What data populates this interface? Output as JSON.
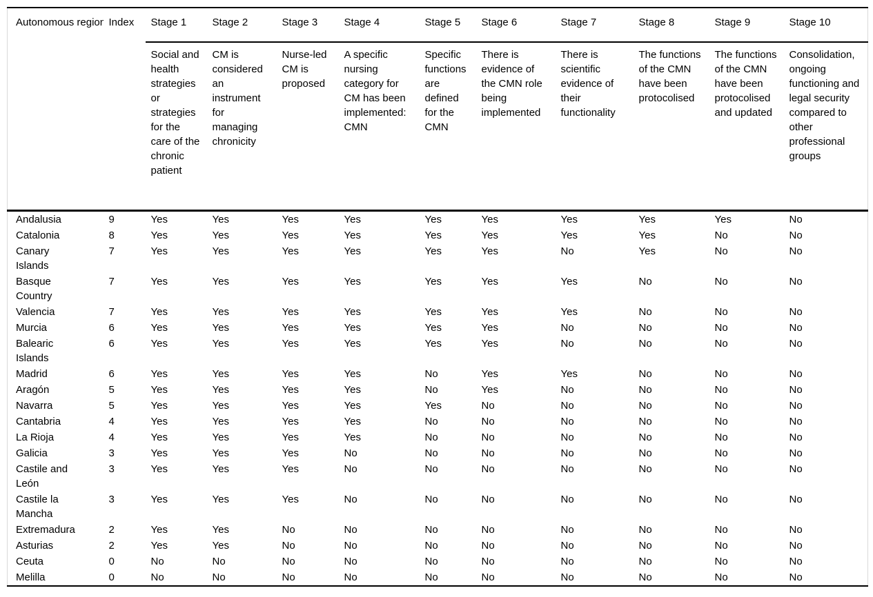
{
  "colors": {
    "background": "#ffffff",
    "text": "#000000",
    "rule": "#000000",
    "frame_side": "#d9d9d9"
  },
  "table": {
    "col1_header": "Autonomous region",
    "col2_header": "Index",
    "stages": [
      {
        "label": "Stage 1",
        "description": "Social and health strategies or strategies for the care of the chronic patient"
      },
      {
        "label": "Stage 2",
        "description": "CM is considered an instrument for managing chronicity"
      },
      {
        "label": "Stage 3",
        "description": "Nurse-led CM is proposed"
      },
      {
        "label": "Stage 4",
        "description": "A specific nursing category for CM has been implemented: CMN"
      },
      {
        "label": "Stage 5",
        "description": "Specific functions are defined for the CMN"
      },
      {
        "label": "Stage 6",
        "description": "There is evidence of the CMN role being implemented"
      },
      {
        "label": "Stage 7",
        "description": "There is scientific evidence of their functionality"
      },
      {
        "label": "Stage 8",
        "description": "The functions of the CMN have been protocolised"
      },
      {
        "label": "Stage 9",
        "description": "The functions of the CMN have been protocolised and updated"
      },
      {
        "label": "Stage 10",
        "description": "Consolidation, ongoing functioning and legal security compared to other professional groups"
      }
    ],
    "rows": [
      {
        "region": "Andalusia",
        "index": 9,
        "stages": [
          "Yes",
          "Yes",
          "Yes",
          "Yes",
          "Yes",
          "Yes",
          "Yes",
          "Yes",
          "Yes",
          "No"
        ]
      },
      {
        "region": "Catalonia",
        "index": 8,
        "stages": [
          "Yes",
          "Yes",
          "Yes",
          "Yes",
          "Yes",
          "Yes",
          "Yes",
          "Yes",
          "No",
          "No"
        ]
      },
      {
        "region": "Canary Islands",
        "index": 7,
        "stages": [
          "Yes",
          "Yes",
          "Yes",
          "Yes",
          "Yes",
          "Yes",
          "No",
          "Yes",
          "No",
          "No"
        ]
      },
      {
        "region": "Basque Country",
        "index": 7,
        "stages": [
          "Yes",
          "Yes",
          "Yes",
          "Yes",
          "Yes",
          "Yes",
          "Yes",
          "No",
          "No",
          "No"
        ]
      },
      {
        "region": "Valencia",
        "index": 7,
        "stages": [
          "Yes",
          "Yes",
          "Yes",
          "Yes",
          "Yes",
          "Yes",
          "Yes",
          "No",
          "No",
          "No"
        ]
      },
      {
        "region": "Murcia",
        "index": 6,
        "stages": [
          "Yes",
          "Yes",
          "Yes",
          "Yes",
          "Yes",
          "Yes",
          "No",
          "No",
          "No",
          "No"
        ]
      },
      {
        "region": "Balearic Islands",
        "index": 6,
        "stages": [
          "Yes",
          "Yes",
          "Yes",
          "Yes",
          "Yes",
          "Yes",
          "No",
          "No",
          "No",
          "No"
        ]
      },
      {
        "region": "Madrid",
        "index": 6,
        "stages": [
          "Yes",
          "Yes",
          "Yes",
          "Yes",
          "No",
          "Yes",
          "Yes",
          "No",
          "No",
          "No"
        ]
      },
      {
        "region": "Aragón",
        "index": 5,
        "stages": [
          "Yes",
          "Yes",
          "Yes",
          "Yes",
          "No",
          "Yes",
          "No",
          "No",
          "No",
          "No"
        ]
      },
      {
        "region": "Navarra",
        "index": 5,
        "stages": [
          "Yes",
          "Yes",
          "Yes",
          "Yes",
          "Yes",
          "No",
          "No",
          "No",
          "No",
          "No"
        ]
      },
      {
        "region": "Cantabria",
        "index": 4,
        "stages": [
          "Yes",
          "Yes",
          "Yes",
          "Yes",
          "No",
          "No",
          "No",
          "No",
          "No",
          "No"
        ]
      },
      {
        "region": "La Rioja",
        "index": 4,
        "stages": [
          "Yes",
          "Yes",
          "Yes",
          "Yes",
          "No",
          "No",
          "No",
          "No",
          "No",
          "No"
        ]
      },
      {
        "region": "Galicia",
        "index": 3,
        "stages": [
          "Yes",
          "Yes",
          "Yes",
          "No",
          "No",
          "No",
          "No",
          "No",
          "No",
          "No"
        ]
      },
      {
        "region": "Castile and León",
        "index": 3,
        "stages": [
          "Yes",
          "Yes",
          "Yes",
          "No",
          "No",
          "No",
          "No",
          "No",
          "No",
          "No"
        ]
      },
      {
        "region": "Castile la Mancha",
        "index": 3,
        "stages": [
          "Yes",
          "Yes",
          "Yes",
          "No",
          "No",
          "No",
          "No",
          "No",
          "No",
          "No"
        ]
      },
      {
        "region": "Extremadura",
        "index": 2,
        "stages": [
          "Yes",
          "Yes",
          "No",
          "No",
          "No",
          "No",
          "No",
          "No",
          "No",
          "No"
        ]
      },
      {
        "region": "Asturias",
        "index": 2,
        "stages": [
          "Yes",
          "Yes",
          "No",
          "No",
          "No",
          "No",
          "No",
          "No",
          "No",
          "No"
        ]
      },
      {
        "region": "Ceuta",
        "index": 0,
        "stages": [
          "No",
          "No",
          "No",
          "No",
          "No",
          "No",
          "No",
          "No",
          "No",
          "No"
        ]
      },
      {
        "region": "Melilla",
        "index": 0,
        "stages": [
          "No",
          "No",
          "No",
          "No",
          "No",
          "No",
          "No",
          "No",
          "No",
          "No"
        ]
      }
    ]
  }
}
